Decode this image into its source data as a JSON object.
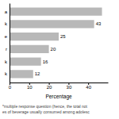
{
  "chart_data": {
    "type": "bar",
    "orientation": "horizontal",
    "categories": [
      "a",
      "k",
      "e",
      "r",
      "k",
      "k"
    ],
    "values": [
      47,
      43,
      25,
      20,
      16,
      12
    ],
    "data_labels": true,
    "value_labels": [
      null,
      "43",
      "25",
      "20",
      "16",
      "12"
    ],
    "color": "#b8b8b8",
    "xlabel": "Percentage",
    "xlim": [
      0,
      50
    ],
    "xticks": [
      0,
      10,
      20,
      30,
      40
    ],
    "annotations": [
      "*multiple response question (hence, the total not",
      "es of beverage usually consumed among adolesc"
    ]
  }
}
